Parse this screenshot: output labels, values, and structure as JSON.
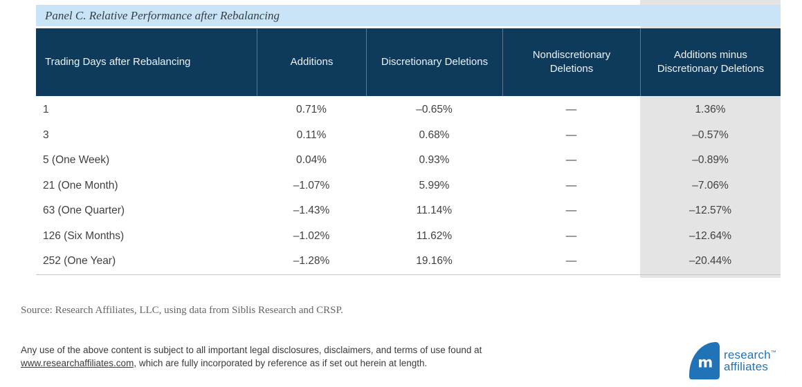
{
  "panel": {
    "title": "Panel C. Relative Performance after Rebalancing"
  },
  "table": {
    "columns": [
      "Trading Days after Rebalancing",
      "Additions",
      "Discretionary Deletions",
      "Nondiscretionary Deletions",
      "Additions minus Discretionary Deletions"
    ],
    "rows": [
      [
        "1",
        "0.71%",
        "–0.65%",
        "—",
        "1.36%"
      ],
      [
        "3",
        "0.11%",
        "0.68%",
        "—",
        "–0.57%"
      ],
      [
        "5 (One Week)",
        "0.04%",
        "0.93%",
        "—",
        "–0.89%"
      ],
      [
        "21 (One Month)",
        "–1.07%",
        "5.99%",
        "—",
        "–7.06%"
      ],
      [
        "63 (One Quarter)",
        "–1.43%",
        "11.14%",
        "—",
        "–12.57%"
      ],
      [
        "126 (Six Months)",
        "–1.02%",
        "11.62%",
        "—",
        "–12.64%"
      ],
      [
        "252 (One Year)",
        "–1.28%",
        "19.16%",
        "—",
        "–20.44%"
      ]
    ]
  },
  "source_note": "Source: Research Affiliates, LLC, using data from Siblis Research and CRSP.",
  "footer": {
    "disclaimer_line1": "Any use of the above content is subject to all important legal disclosures, disclaimers, and terms of use found at",
    "link_text": "www.researchaffiliates.com,",
    "disclaimer_line2": " which are fully incorporated by reference as if set out herein at length."
  },
  "logo": {
    "monogram": "m",
    "line1": "research",
    "trademark": "™",
    "line2": "affiliates"
  },
  "colors": {
    "header_navy": "#0e3a5c",
    "title_blue": "#c9e3f7",
    "column_gray": "#e4e4e4",
    "logo_blue": "#2173b8"
  }
}
